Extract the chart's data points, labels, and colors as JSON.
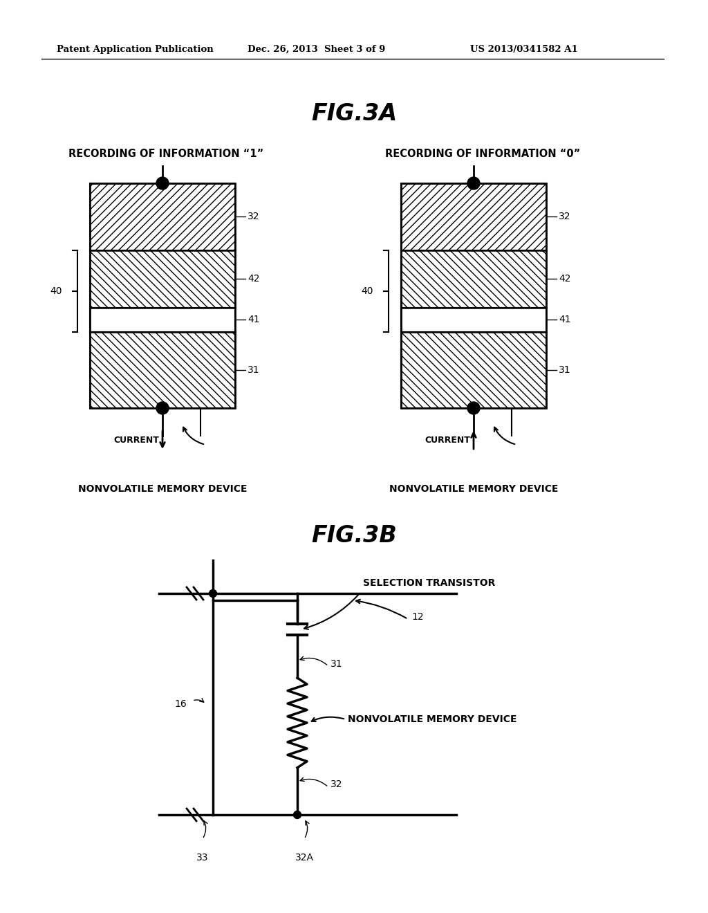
{
  "bg_color": "#ffffff",
  "header_left": "Patent Application Publication",
  "header_center": "Dec. 26, 2013  Sheet 3 of 9",
  "header_right": "US 2013/0341582 A1",
  "fig3a_title": "FIG.3A",
  "fig3b_title": "FIG.3B",
  "label_rec1": "RECORDING OF INFORMATION “1”",
  "label_rec0": "RECORDING OF INFORMATION “0”",
  "label_current": "CURRENT",
  "label_nvm": "NONVOLATILE MEMORY DEVICE",
  "label_sel_trans": "SELECTION TRANSISTOR",
  "label_nvm2": "NONVOLATILE MEMORY DEVICE",
  "label_12": "12",
  "label_16": "16",
  "label_31b": "31",
  "label_32b": "32",
  "label_33": "33",
  "label_32A": "32A"
}
